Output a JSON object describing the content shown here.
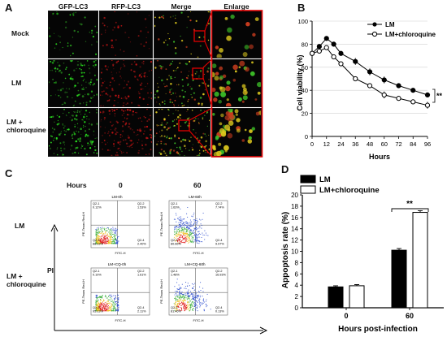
{
  "panel_a": {
    "letter": "A",
    "columns": [
      "GFP-LC3",
      "RFP-LC3",
      "Merge",
      "Enlarge"
    ],
    "rows": [
      "Mock",
      "LM",
      "LM +\nchloroquine"
    ]
  },
  "panel_c": {
    "letter": "C",
    "hours_label": "Hours",
    "time_points": [
      "0",
      "60"
    ],
    "rows": [
      "LM",
      "LM +\nchloroquine"
    ],
    "y_axis_label": "PI",
    "plots": [
      {
        "title": "LM-0h",
        "q": [
          "Q2-1",
          "Q2-2",
          "Q2-3",
          "Q2-4"
        ],
        "p": [
          "0.12%",
          "1.53%",
          "88.13%",
          "2.40%"
        ]
      },
      {
        "title": "LM-60h",
        "q": [
          "Q2-1",
          "Q2-2",
          "Q2-3",
          "Q2-4"
        ],
        "p": [
          "1.63%",
          "7.74%",
          "80.66%",
          "9.97%"
        ]
      },
      {
        "title": "LM+CQ-0h",
        "q": [
          "Q2-1",
          "Q2-2",
          "Q2-3",
          "Q2-4"
        ],
        "p": [
          "0.10%",
          "1.61%",
          "95.13%",
          "2.11%"
        ]
      },
      {
        "title": "LM+CQ-60h",
        "q": [
          "Q2-1",
          "Q2-2",
          "Q2-3",
          "Q2-4"
        ],
        "p": [
          "1.48%",
          "16.93%",
          "81.46%",
          "0.13%"
        ]
      }
    ],
    "flow_x_label": "FITC-H",
    "flow_y_label": "PE-Texas Red-H"
  },
  "chart_data": [
    {
      "panel": "B",
      "type": "line",
      "xlabel": "Hours",
      "ylabel": "Cell viability (%)",
      "xlim": [
        0,
        96
      ],
      "ylim": [
        0,
        100
      ],
      "xticks": [
        "0",
        "12",
        "24",
        "36",
        "48",
        "60",
        "72",
        "84",
        "96"
      ],
      "yticks": [
        "0",
        "20",
        "40",
        "60",
        "80",
        "100"
      ],
      "x": [
        0,
        6,
        12,
        18,
        24,
        36,
        48,
        60,
        72,
        84,
        96
      ],
      "series": [
        {
          "name": "LM",
          "marker": "filled-circle",
          "values": [
            72,
            78,
            85,
            80,
            72,
            65,
            56,
            49,
            44,
            40,
            36
          ],
          "errors": [
            2,
            2,
            2,
            2,
            2,
            3,
            3,
            3,
            2,
            2,
            2
          ]
        },
        {
          "name": "LM+chloroquine",
          "marker": "open-circle",
          "values": [
            72,
            74,
            77,
            69,
            63,
            50,
            44,
            36,
            33,
            30,
            27
          ],
          "errors": [
            2,
            2,
            2,
            2,
            2,
            2,
            2,
            3,
            2,
            2,
            3
          ]
        }
      ],
      "legend": "top-right",
      "annotation": "**"
    },
    {
      "panel": "D",
      "type": "bar",
      "xlabel": "Hours post-infection",
      "ylabel": "Appoptosis rate (%)",
      "categories": [
        "0",
        "60"
      ],
      "ylim": [
        0,
        20
      ],
      "yticks": [
        "0",
        "2",
        "4",
        "6",
        "8",
        "10",
        "12",
        "14",
        "16",
        "18",
        "20"
      ],
      "series": [
        {
          "name": "LM",
          "color": "#000000",
          "values": [
            3.7,
            10.2
          ],
          "errors": [
            0.2,
            0.3
          ]
        },
        {
          "name": "LM+chloroquine",
          "color": "#ffffff",
          "values": [
            3.9,
            16.9
          ],
          "errors": [
            0.2,
            0.3
          ]
        }
      ],
      "legend": "top-left",
      "annotation": "**"
    }
  ]
}
